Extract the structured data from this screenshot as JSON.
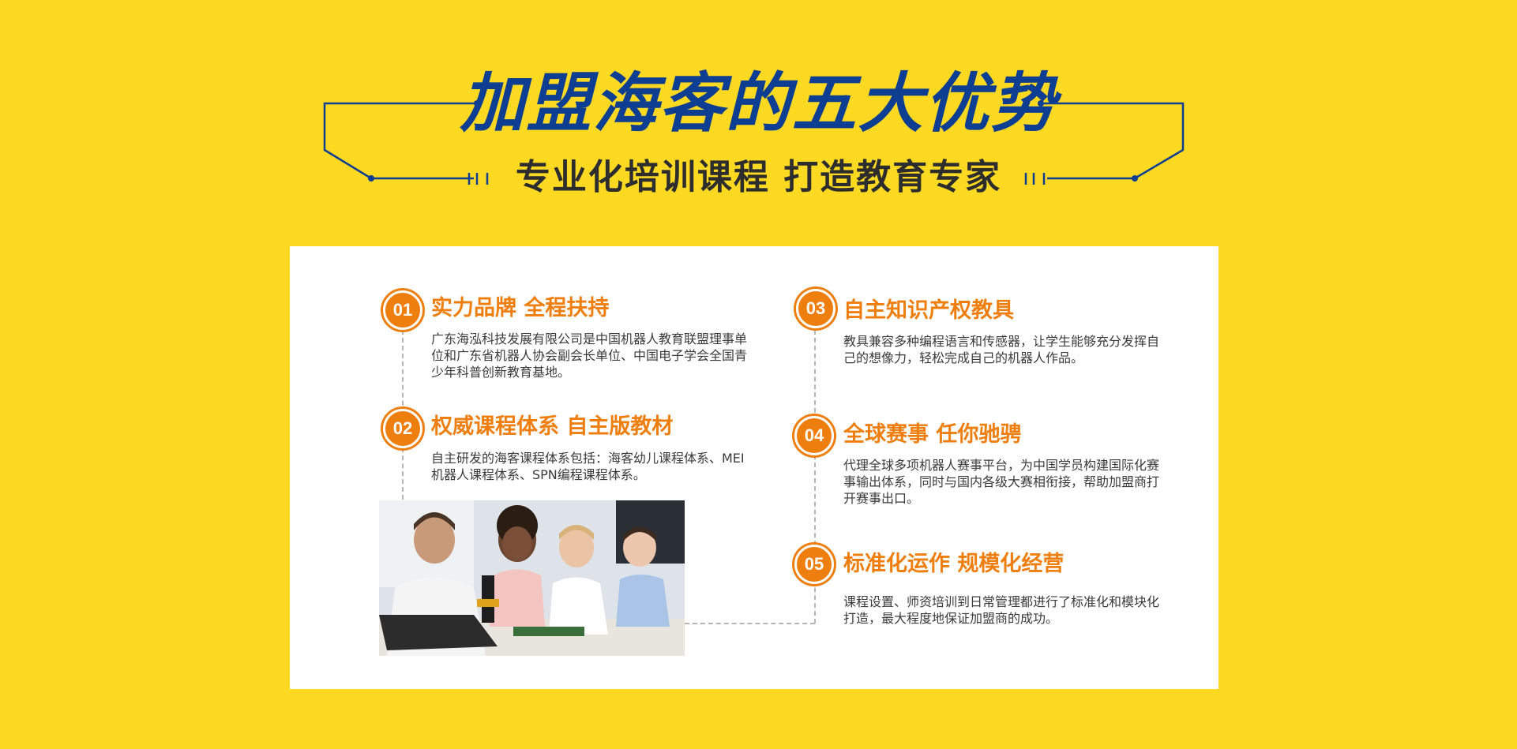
{
  "header": {
    "title": "加盟海客的五大优势",
    "subtitle": "专业化培训课程 打造教育专家"
  },
  "colors": {
    "background": "#FDD922",
    "title": "#0E3E92",
    "accent": "#EE7E0E",
    "card": "#FFFFFF"
  },
  "advantages": [
    {
      "number": "01",
      "title": "实力品牌 全程扶持",
      "text": "广东海泓科技发展有限公司是中国机器人教育联盟理事单位和广东省机器人协会副会长单位、中国电子学会全国青少年科普创新教育基地。"
    },
    {
      "number": "02",
      "title": "权威课程体系 自主版教材",
      "text": "自主研发的海客课程体系包括：海客幼儿课程体系、MEI机器人课程体系、SPN编程课程体系。"
    },
    {
      "number": "03",
      "title": "自主知识产权教具",
      "text": "教具兼容多种编程语言和传感器，让学生能够充分发挥自己的想像力，轻松完成自己的机器人作品。"
    },
    {
      "number": "04",
      "title": "全球赛事 任你驰骋",
      "text": "代理全球多项机器人赛事平台，为中国学员构建国际化赛事输出体系，同时与国内各级大赛相衔接，帮助加盟商打开赛事出口。"
    },
    {
      "number": "05",
      "title": "标准化运作 规模化经营",
      "text": "课程设置、师资培训到日常管理都进行了标准化和模块化打造，最大程度地保证加盟商的成功。"
    }
  ]
}
